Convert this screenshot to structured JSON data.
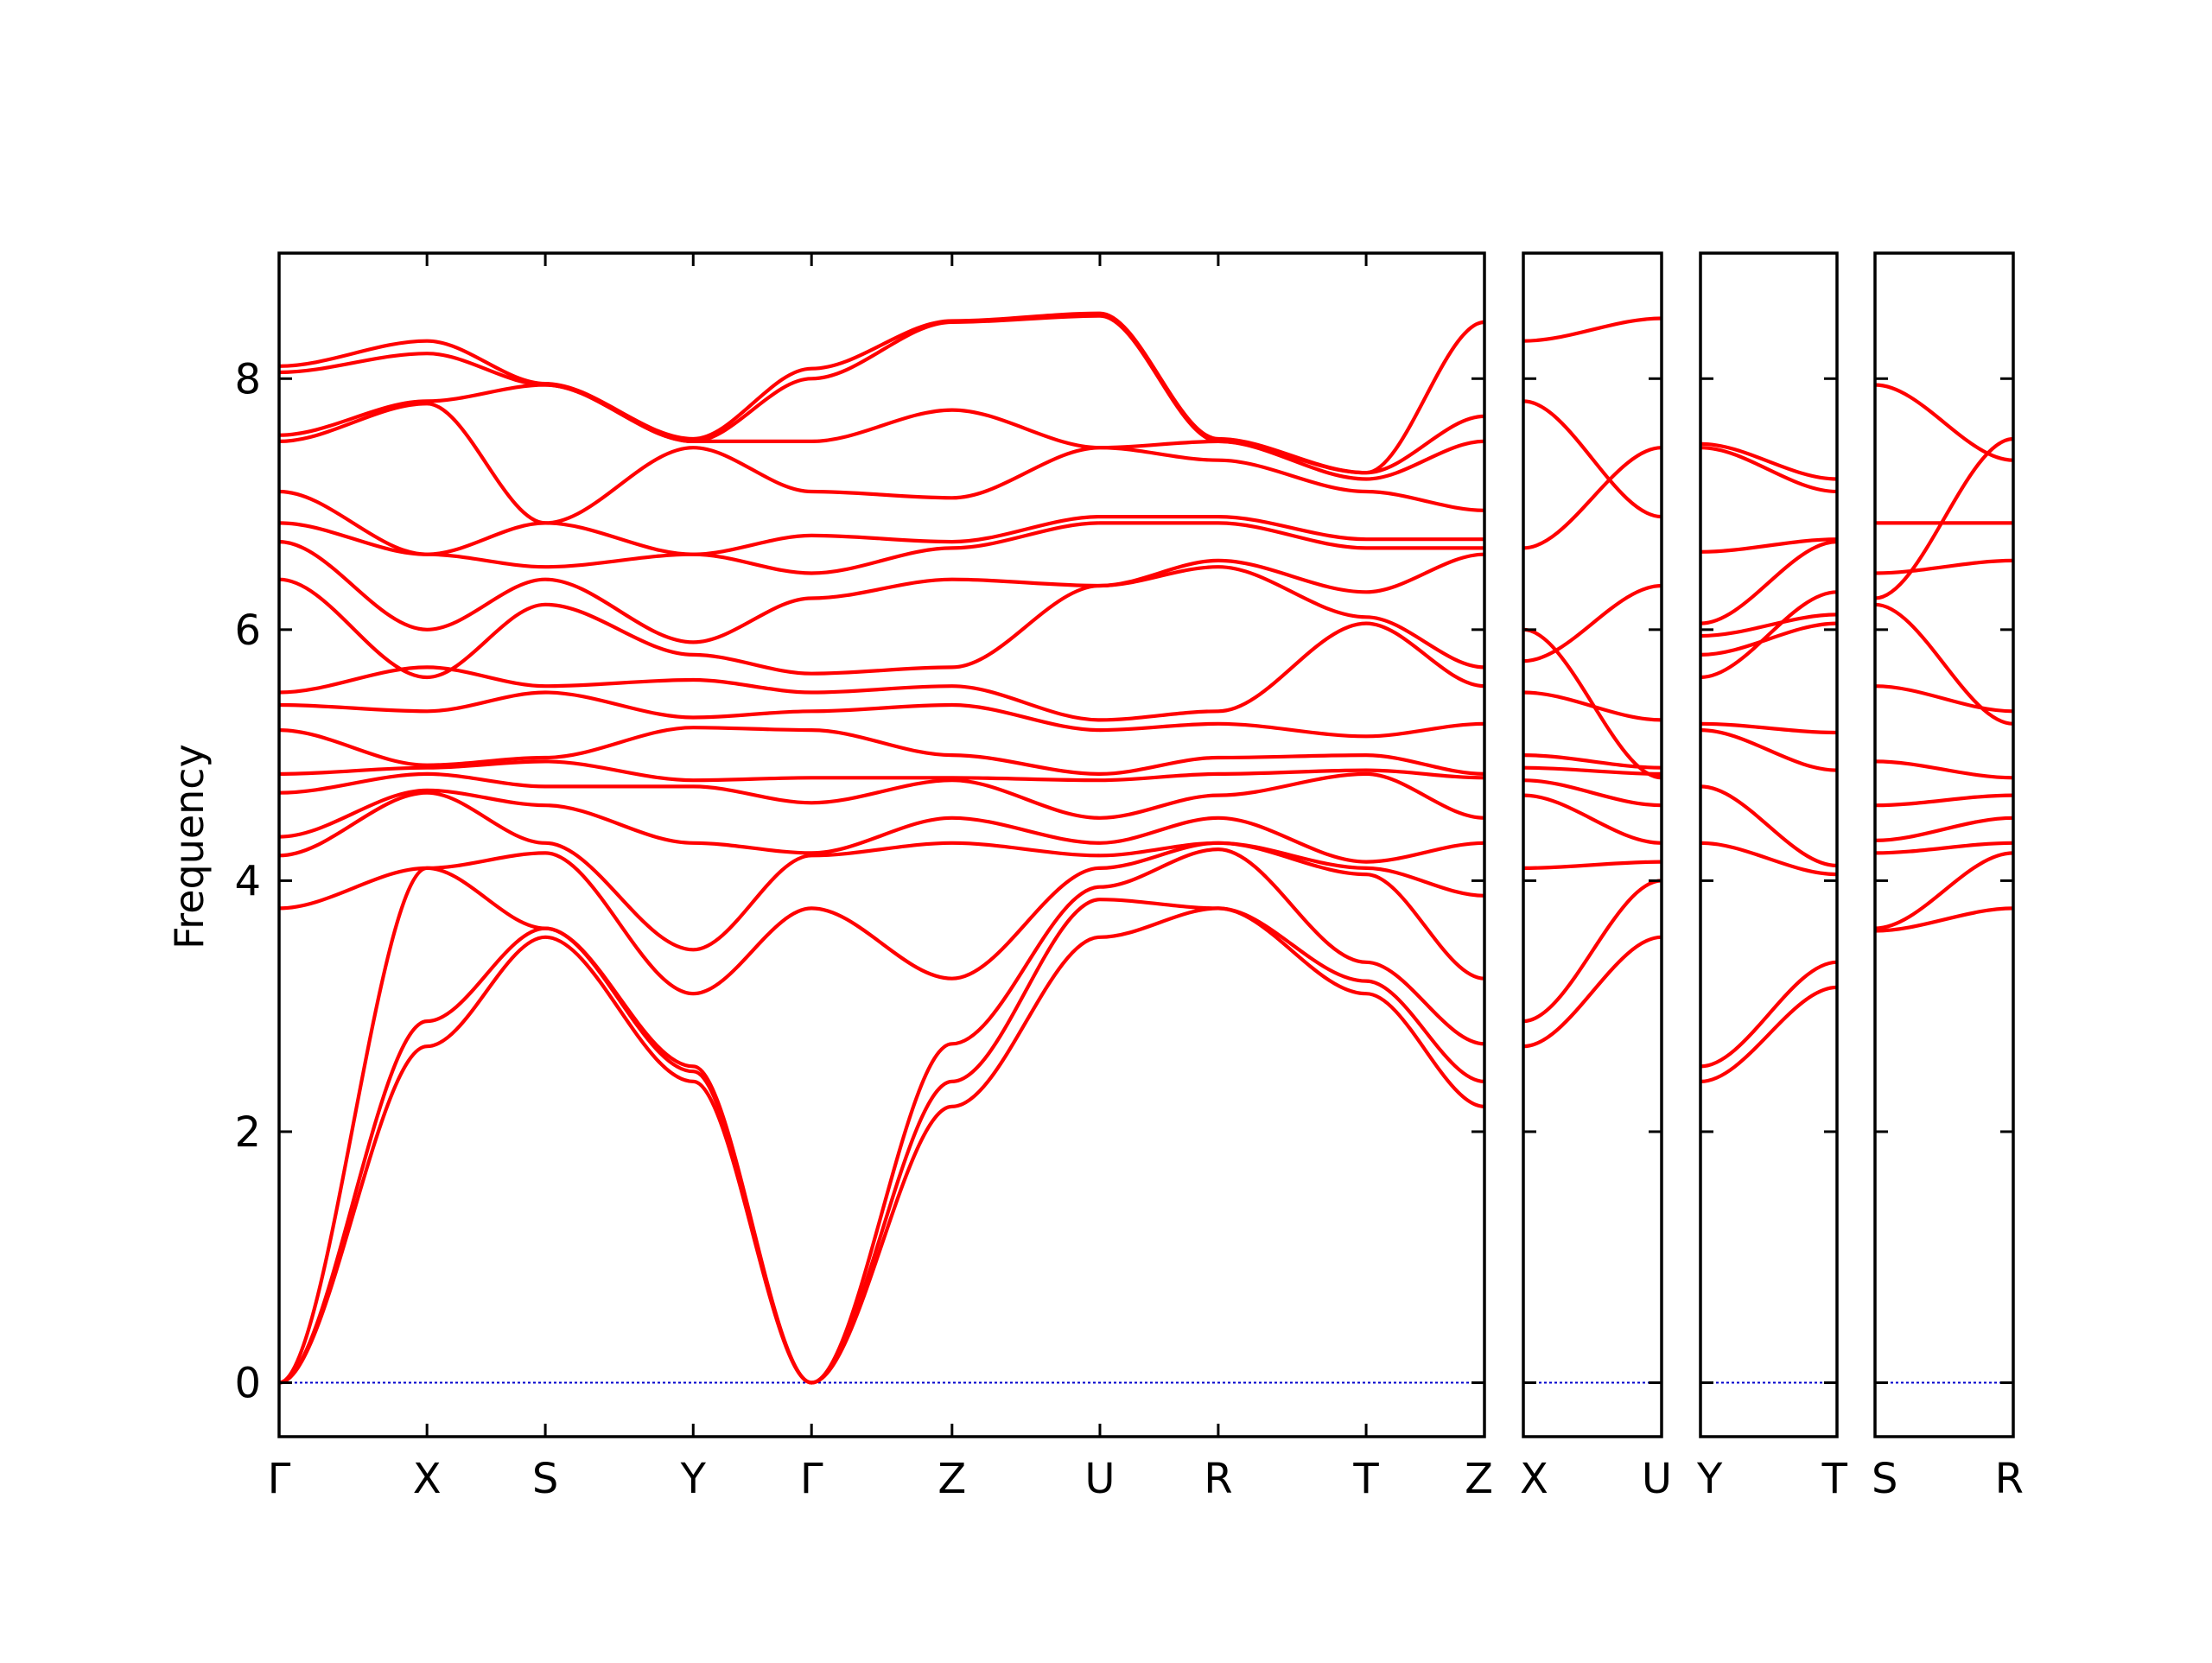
{
  "chart_data": {
    "type": "line",
    "title": "",
    "ylabel": "Frequency",
    "xlabel": "",
    "ylim": [
      -0.43,
      9.0
    ],
    "yticks": [
      0,
      2,
      4,
      6,
      8
    ],
    "grid": false,
    "legend": "none",
    "colors": {
      "bands": "#ff0000",
      "zero_line": "#0000cc",
      "frame": "#000000"
    },
    "panels": [
      {
        "segments": [
          "Γ-X",
          "X-S",
          "S-Y",
          "Y-Γ",
          "Γ-Z",
          "Z-U",
          "U-R",
          "R-T",
          "T-Z"
        ],
        "x_ticks": [
          {
            "pos": 0.0,
            "label": "Γ"
          },
          {
            "pos": 1.0,
            "label": "X"
          },
          {
            "pos": 1.8,
            "label": "S"
          },
          {
            "pos": 2.8,
            "label": "Y"
          },
          {
            "pos": 3.6,
            "label": "Γ"
          },
          {
            "pos": 4.55,
            "label": "Z"
          },
          {
            "pos": 5.55,
            "label": "U"
          },
          {
            "pos": 6.35,
            "label": "R"
          },
          {
            "pos": 7.35,
            "label": "T"
          },
          {
            "pos": 8.15,
            "label": "Z"
          }
        ],
        "xlim": [
          0,
          8.15
        ],
        "nodes": [
          0,
          1.0,
          1.8,
          2.8,
          3.6,
          4.55,
          5.55,
          6.35,
          7.35,
          8.15
        ],
        "bands": [
          [
            0,
            2.68,
            3.55,
            2.4,
            0,
            2.2,
            3.55,
            3.78,
            3.1,
            2.2
          ],
          [
            0,
            2.88,
            3.62,
            2.48,
            0,
            2.4,
            3.85,
            3.78,
            3.2,
            2.4
          ],
          [
            0,
            4.1,
            3.62,
            2.52,
            0,
            2.7,
            3.95,
            4.25,
            3.35,
            2.7
          ],
          [
            3.78,
            4.1,
            4.22,
            3.1,
            3.78,
            3.22,
            4.1,
            4.3,
            4.05,
            3.22
          ],
          [
            4.2,
            4.7,
            4.3,
            3.45,
            4.2,
            4.3,
            4.2,
            4.3,
            4.1,
            3.88
          ],
          [
            4.35,
            4.72,
            4.6,
            4.3,
            4.22,
            4.5,
            4.3,
            4.5,
            4.15,
            4.3
          ],
          [
            4.7,
            4.85,
            4.75,
            4.75,
            4.62,
            4.8,
            4.5,
            4.68,
            4.85,
            4.5
          ],
          [
            4.85,
            4.9,
            4.95,
            4.8,
            4.82,
            4.82,
            4.8,
            4.85,
            4.88,
            4.82
          ],
          [
            5.2,
            4.92,
            4.98,
            5.22,
            5.2,
            5.0,
            4.85,
            4.98,
            5.0,
            4.85
          ],
          [
            5.4,
            5.35,
            5.5,
            5.3,
            5.35,
            5.4,
            5.2,
            5.25,
            5.15,
            5.25
          ],
          [
            5.5,
            5.7,
            5.55,
            5.6,
            5.5,
            5.55,
            5.28,
            5.35,
            6.05,
            5.55
          ],
          [
            6.4,
            5.62,
            6.2,
            5.8,
            5.65,
            5.7,
            6.35,
            6.5,
            6.1,
            5.7
          ],
          [
            6.7,
            6.0,
            6.4,
            5.9,
            6.25,
            6.4,
            6.35,
            6.55,
            6.3,
            6.6
          ],
          [
            6.85,
            6.6,
            6.5,
            6.6,
            6.45,
            6.65,
            6.85,
            6.85,
            6.65,
            6.65
          ],
          [
            7.1,
            6.6,
            6.85,
            6.6,
            6.75,
            6.7,
            6.9,
            6.9,
            6.72,
            6.72
          ],
          [
            7.5,
            7.8,
            6.85,
            7.45,
            7.1,
            7.05,
            7.45,
            7.35,
            7.1,
            6.95
          ],
          [
            7.55,
            7.82,
            7.95,
            7.5,
            7.5,
            7.75,
            7.45,
            7.5,
            7.2,
            7.5
          ],
          [
            8.05,
            8.2,
            7.95,
            7.5,
            8.0,
            8.45,
            8.5,
            7.5,
            7.25,
            7.7
          ],
          [
            8.1,
            8.3,
            7.96,
            7.52,
            8.08,
            8.46,
            8.52,
            7.52,
            7.25,
            8.45
          ]
        ]
      },
      {
        "x_ticks": [
          {
            "pos": 0,
            "label": "X"
          },
          {
            "pos": 1,
            "label": "U"
          }
        ],
        "xlim": [
          0,
          1
        ],
        "bands": [
          [
            2.68,
            3.55
          ],
          [
            2.88,
            4.0
          ],
          [
            4.1,
            4.15
          ],
          [
            4.68,
            4.3
          ],
          [
            4.8,
            4.6
          ],
          [
            4.9,
            4.85
          ],
          [
            5.0,
            4.9
          ],
          [
            5.5,
            5.28
          ],
          [
            5.75,
            6.35
          ],
          [
            6.0,
            4.82
          ],
          [
            6.65,
            7.45
          ],
          [
            7.82,
            6.9
          ],
          [
            8.3,
            8.48
          ]
        ]
      },
      {
        "x_ticks": [
          {
            "pos": 0,
            "label": "Y"
          },
          {
            "pos": 1,
            "label": "T"
          }
        ],
        "xlim": [
          0,
          1
        ],
        "bands": [
          [
            2.4,
            3.15
          ],
          [
            2.52,
            3.35
          ],
          [
            4.3,
            4.05
          ],
          [
            4.75,
            4.12
          ],
          [
            5.2,
            4.88
          ],
          [
            5.25,
            5.18
          ],
          [
            5.62,
            6.3
          ],
          [
            5.8,
            6.05
          ],
          [
            5.95,
            6.12
          ],
          [
            6.05,
            6.7
          ],
          [
            6.62,
            6.72
          ],
          [
            7.45,
            7.1
          ],
          [
            7.48,
            7.2
          ]
        ]
      },
      {
        "x_ticks": [
          {
            "pos": 0,
            "label": "S"
          },
          {
            "pos": 1,
            "label": "R"
          }
        ],
        "xlim": [
          0,
          1
        ],
        "bands": [
          [
            3.6,
            3.78
          ],
          [
            3.62,
            4.22
          ],
          [
            4.22,
            4.3
          ],
          [
            4.32,
            4.5
          ],
          [
            4.6,
            4.68
          ],
          [
            4.95,
            4.82
          ],
          [
            5.55,
            5.35
          ],
          [
            6.2,
            5.25
          ],
          [
            6.45,
            6.55
          ],
          [
            6.85,
            6.85
          ],
          [
            7.95,
            7.35
          ],
          [
            6.25,
            7.52
          ]
        ]
      }
    ]
  }
}
